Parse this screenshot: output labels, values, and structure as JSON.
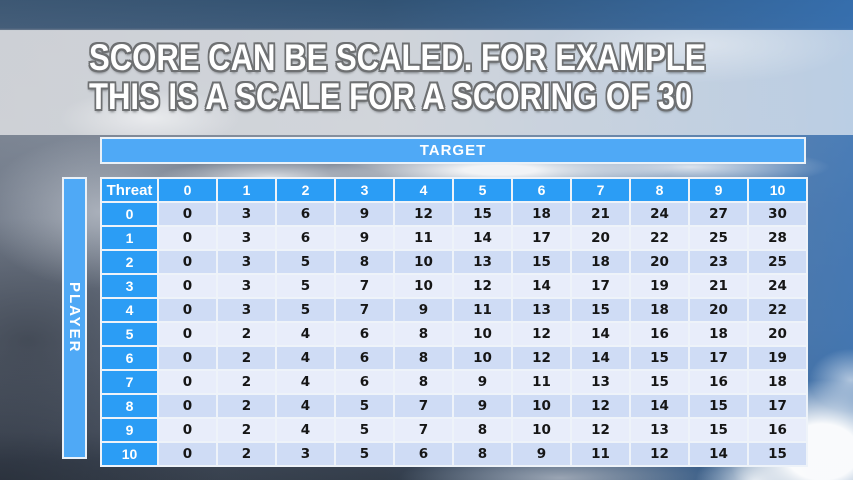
{
  "slide": {
    "title_line1": "SCORE CAN BE SCALED. FOR EXAMPLE",
    "title_line2": "THIS IS A SCALE FOR A SCORING OF 30"
  },
  "table": {
    "target_label": "TARGET",
    "player_label": "PLAYER",
    "corner_label": "Threat",
    "column_headers": [
      "0",
      "1",
      "2",
      "3",
      "4",
      "5",
      "6",
      "7",
      "8",
      "9",
      "10"
    ],
    "row_headers": [
      "0",
      "1",
      "2",
      "3",
      "4",
      "5",
      "6",
      "7",
      "8",
      "9",
      "10"
    ],
    "rows": [
      [
        0,
        3,
        6,
        9,
        12,
        15,
        18,
        21,
        24,
        27,
        30
      ],
      [
        0,
        3,
        6,
        9,
        11,
        14,
        17,
        20,
        22,
        25,
        28
      ],
      [
        0,
        3,
        5,
        8,
        10,
        13,
        15,
        18,
        20,
        23,
        25
      ],
      [
        0,
        3,
        5,
        7,
        10,
        12,
        14,
        17,
        19,
        21,
        24
      ],
      [
        0,
        3,
        5,
        7,
        9,
        11,
        13,
        15,
        18,
        20,
        22
      ],
      [
        0,
        2,
        4,
        6,
        8,
        10,
        12,
        14,
        16,
        18,
        20
      ],
      [
        0,
        2,
        4,
        6,
        8,
        10,
        12,
        14,
        15,
        17,
        19
      ],
      [
        0,
        2,
        4,
        6,
        8,
        9,
        11,
        13,
        15,
        16,
        18
      ],
      [
        0,
        2,
        4,
        5,
        7,
        9,
        10,
        12,
        14,
        15,
        17
      ],
      [
        0,
        2,
        4,
        5,
        7,
        8,
        10,
        12,
        13,
        15,
        16
      ],
      [
        0,
        2,
        3,
        5,
        6,
        8,
        9,
        11,
        12,
        14,
        15
      ]
    ]
  },
  "colors": {
    "header_blue": "#2b9df5",
    "banner_blue": "#4fa9f6",
    "row_stripe_dark": "#cfdcf5",
    "row_stripe_light": "#e8edfa",
    "title_text": "#ffffff",
    "title_outline": "#6e7072"
  }
}
